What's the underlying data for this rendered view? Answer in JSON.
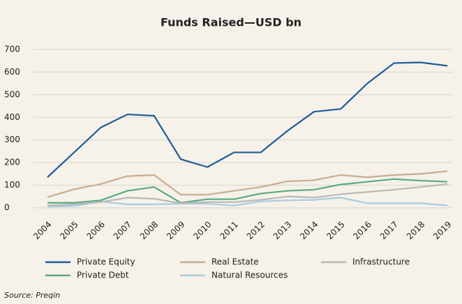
{
  "chart_data": {
    "type": "line",
    "title": "Funds Raised—USD bn",
    "x": [
      "2004",
      "2005",
      "2006",
      "2007",
      "2008",
      "2009",
      "2010",
      "2011",
      "2012",
      "2013",
      "2014",
      "2015",
      "2016",
      "2017",
      "2018",
      "2019"
    ],
    "series": [
      {
        "name": "Private Equity",
        "color": "#1f5c99",
        "values": [
          135,
          245,
          355,
          413,
          407,
          215,
          180,
          245,
          245,
          340,
          425,
          437,
          550,
          640,
          643,
          628
        ]
      },
      {
        "name": "Real Estate",
        "color": "#c8ad8f",
        "values": [
          47,
          82,
          105,
          140,
          145,
          58,
          58,
          75,
          92,
          117,
          122,
          145,
          135,
          145,
          150,
          162
        ]
      },
      {
        "name": "Infrastructure",
        "color": "#b9b9b9",
        "values": [
          10,
          15,
          25,
          45,
          40,
          20,
          25,
          25,
          35,
          50,
          45,
          60,
          70,
          80,
          92,
          105
        ]
      },
      {
        "name": "Private Debt",
        "color": "#5aaa7e",
        "values": [
          22,
          22,
          33,
          75,
          92,
          22,
          38,
          38,
          63,
          75,
          80,
          103,
          115,
          127,
          120,
          115
        ]
      },
      {
        "name": "Natural Resources",
        "color": "#a8cde0",
        "values": [
          5,
          8,
          28,
          15,
          15,
          18,
          18,
          10,
          28,
          33,
          35,
          45,
          20,
          20,
          20,
          10
        ]
      }
    ],
    "ylim": [
      0,
      700
    ],
    "yticks": [
      0,
      100,
      200,
      300,
      400,
      500,
      600,
      700
    ],
    "grid": true,
    "source": "Source: Preqin"
  }
}
